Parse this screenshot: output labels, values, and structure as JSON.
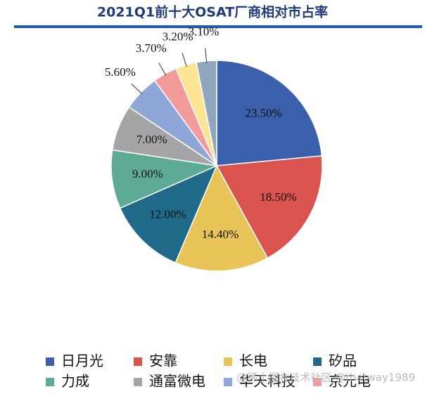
{
  "chart_data": {
    "type": "pie",
    "title": "2021Q1前十大OSAT厂商相对市占率",
    "categories": [
      "日月光",
      "安靠",
      "长电",
      "矽品",
      "力成",
      "通富微电",
      "华天科技",
      "京元电",
      null,
      null
    ],
    "values": [
      23.5,
      18.5,
      14.4,
      12.0,
      9.0,
      7.0,
      5.6,
      3.7,
      3.2,
      3.1
    ],
    "value_labels": [
      "23.50%",
      "18.50%",
      "14.40%",
      "12.00%",
      "9.00%",
      "7.00%",
      "5.60%",
      "3.70%",
      "3.20%",
      "3.10%"
    ],
    "colors": [
      "#3a5fab",
      "#d9534f",
      "#e8c458",
      "#1f6a89",
      "#5daa96",
      "#a5a5a5",
      "#8ea7d8",
      "#f19c9b",
      "#fbe492",
      "#8fa6bd"
    ],
    "legend": "bottom",
    "watermark": "@稀土掘金技术社区 @thatway1989"
  }
}
